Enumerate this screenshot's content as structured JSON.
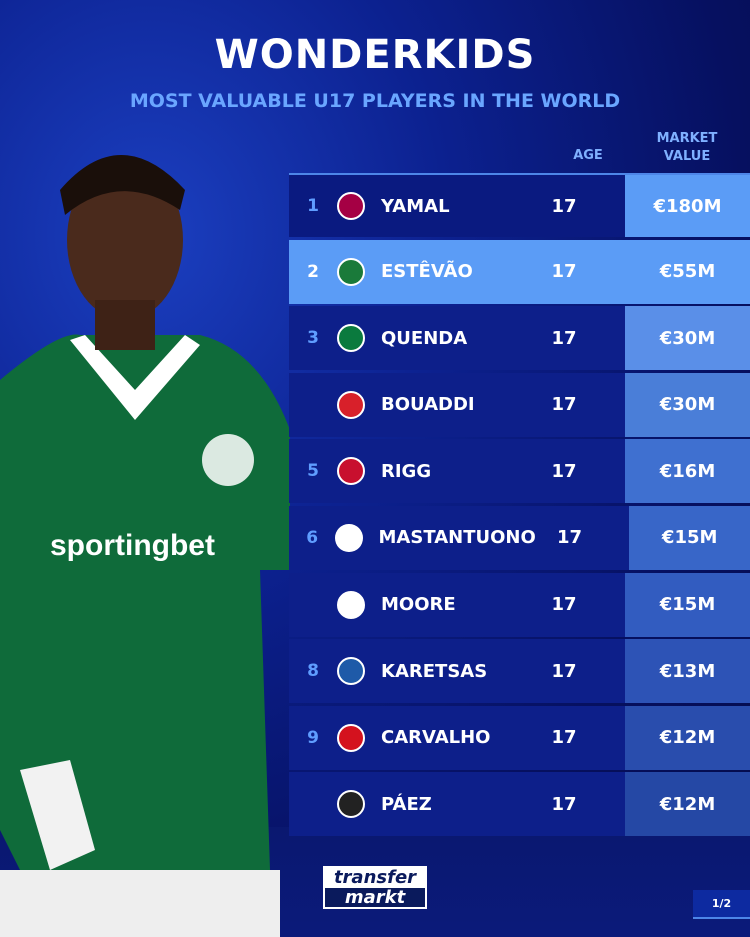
{
  "title": "WONDERKIDS",
  "subtitle": "MOST VALUABLE U17 PLAYERS IN THE WORLD",
  "columns": {
    "age": "AGE",
    "market_value": "MARKET VALUE"
  },
  "rows": [
    {
      "rank": "1",
      "club_icon": "barcelona-crest",
      "name": "YAMAL",
      "age": "17",
      "value": "€180M",
      "val_color": "#5b9cf6"
    },
    {
      "rank": "2",
      "club_icon": "palmeiras-crest",
      "name": "ESTÊVÃO",
      "age": "17",
      "value": "€55M",
      "val_color": "#5b9cf6"
    },
    {
      "rank": "3",
      "club_icon": "sporting-crest",
      "name": "QUENDA",
      "age": "17",
      "value": "€30M",
      "val_color": "#5a8fe8"
    },
    {
      "rank": "",
      "club_icon": "lille-crest",
      "name": "BOUADDI",
      "age": "17",
      "value": "€30M",
      "val_color": "#4a7ed8"
    },
    {
      "rank": "5",
      "club_icon": "sunderland-crest",
      "name": "RIGG",
      "age": "17",
      "value": "€16M",
      "val_color": "#3f70d0"
    },
    {
      "rank": "6",
      "club_icon": "river-plate-crest",
      "name": "MASTANTUONO",
      "age": "17",
      "value": "€15M",
      "val_color": "#3866c8"
    },
    {
      "rank": "",
      "club_icon": "tottenham-crest",
      "name": "MOORE",
      "age": "17",
      "value": "€15M",
      "val_color": "#325cc0"
    },
    {
      "rank": "8",
      "club_icon": "genk-crest",
      "name": "KARETSAS",
      "age": "17",
      "value": "€13M",
      "val_color": "#2d53b6"
    },
    {
      "rank": "9",
      "club_icon": "internacional-crest",
      "name": "CARVALHO",
      "age": "17",
      "value": "€12M",
      "val_color": "#294dad"
    },
    {
      "rank": "",
      "club_icon": "independiente-del-valle-crest",
      "name": "PÁEZ",
      "age": "17",
      "value": "€12M",
      "val_color": "#2548a5"
    }
  ],
  "logo": {
    "line1": "transfer",
    "line2": "markt"
  },
  "page_indicator": "1/2",
  "shirt_text": "sportingbet"
}
